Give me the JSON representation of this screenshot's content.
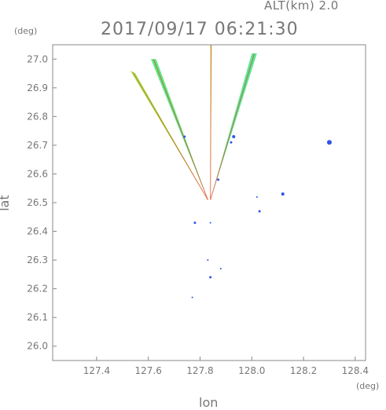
{
  "header": {
    "altitude_label": "ALT(km)",
    "altitude_value": "2.0",
    "datetime": "2017/09/17 06:21:30"
  },
  "chart_data": {
    "type": "scatter",
    "title": "2017/09/17 06:21:30",
    "xlabel": "lon",
    "ylabel": "lat",
    "x_unit": "(deg)",
    "y_unit": "(deg)",
    "xlim": [
      127.23,
      128.44
    ],
    "ylim": [
      25.95,
      27.05
    ],
    "xticks": [
      "127.4",
      "127.6",
      "127.8",
      "128.0",
      "128.2",
      "128.4"
    ],
    "yticks": [
      "26.0",
      "26.1",
      "26.2",
      "26.3",
      "26.4",
      "26.5",
      "26.6",
      "26.7",
      "26.8",
      "26.9",
      "27.0"
    ],
    "grid": false,
    "radar_origin": {
      "lon": 127.83,
      "lat": 26.51
    },
    "beams": [
      {
        "name": "beam-1",
        "from": [
          127.83,
          26.51
        ],
        "to_a": [
          127.53,
          26.96
        ],
        "to_b": [
          127.55,
          26.95
        ],
        "color": "#9ce84a"
      },
      {
        "name": "beam-2",
        "from": [
          127.83,
          26.51
        ],
        "to_a": [
          127.61,
          27.0
        ],
        "to_b": [
          127.63,
          27.0
        ],
        "color": "#55e87e"
      },
      {
        "name": "beam-3",
        "from": [
          127.84,
          26.51
        ],
        "to_a": [
          127.84,
          27.05
        ],
        "to_b": [
          127.845,
          27.05
        ],
        "color": "#b8e23c"
      },
      {
        "name": "beam-4",
        "from": [
          127.84,
          26.51
        ],
        "to_a": [
          128.0,
          27.02
        ],
        "to_b": [
          128.02,
          27.02
        ],
        "color": "#4ee88f"
      }
    ],
    "echoes": [
      {
        "lon": 128.3,
        "lat": 26.71,
        "size": 3,
        "color": "#2d55e8"
      },
      {
        "lon": 128.12,
        "lat": 26.53,
        "size": 2,
        "color": "#2d55e8"
      },
      {
        "lon": 128.03,
        "lat": 26.47,
        "size": 1.5,
        "color": "#2d55e8"
      },
      {
        "lon": 128.02,
        "lat": 26.52,
        "size": 1,
        "color": "#2d55e8"
      },
      {
        "lon": 127.93,
        "lat": 26.73,
        "size": 2,
        "color": "#2d55e8"
      },
      {
        "lon": 127.92,
        "lat": 26.71,
        "size": 1.5,
        "color": "#2d55e8"
      },
      {
        "lon": 127.74,
        "lat": 26.73,
        "size": 1.5,
        "color": "#2d55e8"
      },
      {
        "lon": 127.78,
        "lat": 26.43,
        "size": 1.5,
        "color": "#2d55e8"
      },
      {
        "lon": 127.84,
        "lat": 26.43,
        "size": 1,
        "color": "#2d55e8"
      },
      {
        "lon": 127.84,
        "lat": 26.24,
        "size": 1.5,
        "color": "#2d55e8"
      },
      {
        "lon": 127.83,
        "lat": 26.3,
        "size": 1,
        "color": "#2d55e8"
      },
      {
        "lon": 127.88,
        "lat": 26.27,
        "size": 1,
        "color": "#2d55e8"
      },
      {
        "lon": 127.77,
        "lat": 26.17,
        "size": 1,
        "color": "#2d55e8"
      },
      {
        "lon": 127.87,
        "lat": 26.58,
        "size": 1.5,
        "color": "#2d55e8"
      }
    ],
    "colors": {
      "axis": "#888888",
      "text": "#777777",
      "weak_echo": "#2d55e8",
      "strong_echo": "#e0431c"
    }
  }
}
